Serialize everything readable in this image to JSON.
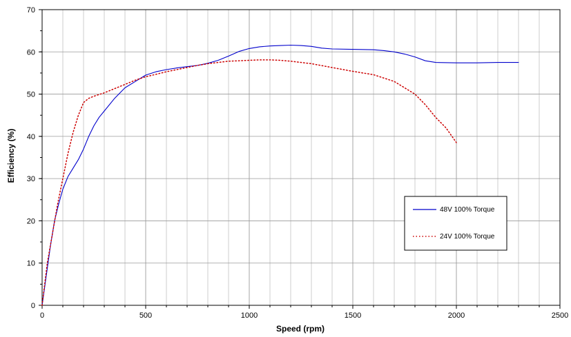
{
  "chart_data": {
    "type": "line",
    "xlabel": "Speed (rpm)",
    "ylabel": "Efficiency (%)",
    "xlim": [
      0,
      2500
    ],
    "ylim": [
      0,
      70
    ],
    "x_ticks": [
      0,
      500,
      1000,
      1500,
      2000,
      2500
    ],
    "y_ticks": [
      0,
      10,
      20,
      30,
      40,
      50,
      60,
      70
    ],
    "x_minor_step": 100,
    "y_minor_step": 5,
    "grid": true,
    "legend_position": "right",
    "series": [
      {
        "name": "48V 100% Torque",
        "color": "#0000cc",
        "style": "solid",
        "x": [
          0,
          20,
          40,
          60,
          80,
          100,
          125,
          150,
          175,
          200,
          225,
          250,
          275,
          300,
          350,
          400,
          450,
          500,
          550,
          600,
          650,
          700,
          750,
          800,
          850,
          900,
          950,
          1000,
          1050,
          1100,
          1150,
          1200,
          1250,
          1300,
          1350,
          1400,
          1500,
          1600,
          1650,
          1700,
          1750,
          1800,
          1850,
          1900,
          2000,
          2100,
          2200,
          2300
        ],
        "y": [
          0,
          7,
          14,
          20,
          24,
          27.5,
          30.5,
          32.5,
          34.5,
          37,
          40,
          42.5,
          44.5,
          46,
          49,
          51.5,
          53,
          54.5,
          55.3,
          55.8,
          56.2,
          56.5,
          56.8,
          57.3,
          58,
          59,
          60.1,
          60.8,
          61.2,
          61.4,
          61.5,
          61.6,
          61.5,
          61.3,
          60.9,
          60.7,
          60.6,
          60.5,
          60.3,
          60.0,
          59.5,
          58.8,
          57.9,
          57.5,
          57.4,
          57.4,
          57.5,
          57.5
        ]
      },
      {
        "name": "24V 100% Torque",
        "color": "#cc0000",
        "style": "dotted",
        "x": [
          0,
          25,
          50,
          75,
          100,
          125,
          150,
          175,
          200,
          225,
          250,
          300,
          350,
          400,
          450,
          500,
          550,
          600,
          650,
          700,
          750,
          800,
          850,
          900,
          950,
          1000,
          1050,
          1100,
          1150,
          1200,
          1300,
          1400,
          1500,
          1600,
          1700,
          1750,
          1800,
          1850,
          1900,
          1950,
          2000
        ],
        "y": [
          0,
          10,
          17,
          24,
          30,
          36,
          41,
          45,
          48,
          49,
          49.5,
          50.3,
          51.3,
          52.3,
          53.3,
          54.1,
          54.7,
          55.3,
          55.8,
          56.3,
          56.8,
          57.2,
          57.5,
          57.8,
          57.9,
          58.0,
          58.1,
          58.1,
          58.0,
          57.8,
          57.2,
          56.3,
          55.4,
          54.6,
          53.0,
          51.5,
          50.0,
          47.5,
          44.5,
          42.0,
          38.5
        ]
      }
    ]
  }
}
